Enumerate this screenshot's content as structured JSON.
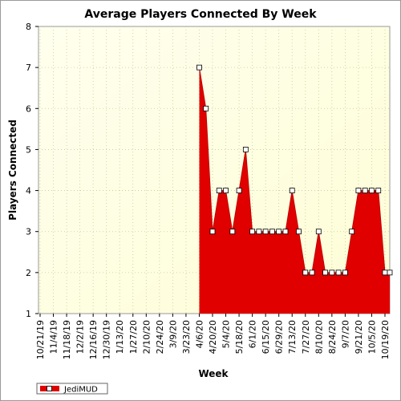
{
  "chart_data": {
    "type": "area",
    "title": "Average Players Connected By Week",
    "xlabel": "Week",
    "ylabel": "Players Connected",
    "ylim": [
      1,
      8
    ],
    "yticks": [
      1,
      2,
      3,
      4,
      5,
      6,
      7,
      8
    ],
    "grid": true,
    "legend_position": "bottom-left",
    "x_tick_labels": [
      "10/21/19",
      "11/4/19",
      "11/18/19",
      "12/2/19",
      "12/16/19",
      "12/30/19",
      "1/13/20",
      "1/27/20",
      "2/10/20",
      "2/24/20",
      "3/9/20",
      "3/23/20",
      "4/6/20",
      "4/20/20",
      "5/4/20",
      "5/18/20",
      "6/1/20",
      "6/15/20",
      "6/29/20",
      "7/13/20",
      "7/27/20",
      "8/10/20",
      "8/24/20",
      "9/7/20",
      "9/21/20",
      "10/5/20",
      "10/19/20"
    ],
    "series": [
      {
        "name": "JediMUD",
        "color": "#e00000",
        "x": [
          "4/6/20",
          "4/13/20",
          "4/20/20",
          "4/27/20",
          "5/4/20",
          "5/11/20",
          "5/18/20",
          "5/25/20",
          "6/1/20",
          "6/8/20",
          "6/15/20",
          "6/22/20",
          "6/29/20",
          "7/6/20",
          "7/13/20",
          "7/20/20",
          "7/27/20",
          "8/3/20",
          "8/10/20",
          "8/17/20",
          "8/24/20",
          "8/31/20",
          "9/7/20",
          "9/14/20",
          "9/21/20",
          "9/28/20",
          "10/5/20",
          "10/12/20",
          "10/19/20",
          "10/26/20"
        ],
        "values": [
          7,
          6,
          3,
          4,
          4,
          3,
          4,
          5,
          3,
          3,
          3,
          3,
          3,
          3,
          4,
          3,
          2,
          2,
          3,
          2,
          2,
          2,
          2,
          3,
          4,
          4,
          4,
          4,
          2,
          2
        ]
      }
    ]
  }
}
